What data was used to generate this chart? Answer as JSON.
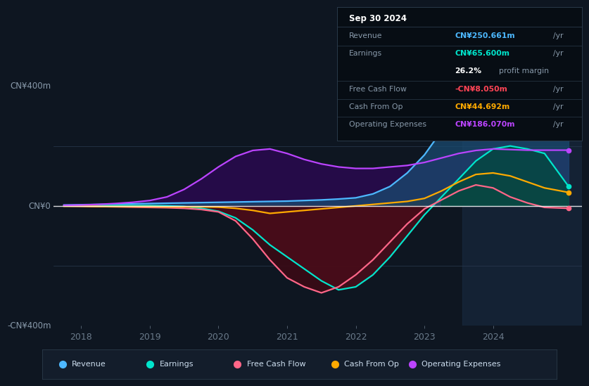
{
  "bg_color": "#0e1621",
  "plot_bg_color": "#0e1621",
  "ylim": [
    -400,
    480
  ],
  "xlim": [
    2017.6,
    2025.3
  ],
  "xticks": [
    2018,
    2019,
    2020,
    2021,
    2022,
    2023,
    2024
  ],
  "ylabel_top": "CN¥400m",
  "ylabel_zero": "CN¥0",
  "ylabel_bottom": "-CN¥400m",
  "info_box": {
    "date": "Sep 30 2024",
    "rows": [
      {
        "label": "Revenue",
        "value": "CN¥250.661m /yr",
        "color": "#4db8ff"
      },
      {
        "label": "Earnings",
        "value": "CN¥65.600m /yr",
        "color": "#00e5cc"
      },
      {
        "label": "",
        "value": "26.2% profit margin",
        "color": null
      },
      {
        "label": "Free Cash Flow",
        "value": "-CN¥8.050m /yr",
        "color": "#ff4455"
      },
      {
        "label": "Cash From Op",
        "value": "CN¥44.692m /yr",
        "color": "#ffaa00"
      },
      {
        "label": "Operating Expenses",
        "value": "CN¥186.070m /yr",
        "color": "#bb44ff"
      }
    ]
  },
  "legend": [
    {
      "label": "Revenue",
      "color": "#4db8ff"
    },
    {
      "label": "Earnings",
      "color": "#00e5cc"
    },
    {
      "label": "Free Cash Flow",
      "color": "#ff6688"
    },
    {
      "label": "Cash From Op",
      "color": "#ffaa00"
    },
    {
      "label": "Operating Expenses",
      "color": "#bb44ff"
    }
  ],
  "series": {
    "x": [
      2017.75,
      2018.0,
      2018.25,
      2018.5,
      2018.75,
      2019.0,
      2019.25,
      2019.5,
      2019.75,
      2020.0,
      2020.25,
      2020.5,
      2020.75,
      2021.0,
      2021.25,
      2021.5,
      2021.75,
      2022.0,
      2022.25,
      2022.5,
      2022.75,
      2023.0,
      2023.25,
      2023.5,
      2023.75,
      2024.0,
      2024.25,
      2024.5,
      2024.75,
      2025.1
    ],
    "revenue": [
      3,
      4,
      5,
      6,
      7,
      8,
      9,
      10,
      11,
      12,
      13,
      14,
      15,
      16,
      18,
      20,
      23,
      27,
      40,
      65,
      110,
      170,
      250,
      340,
      380,
      360,
      310,
      280,
      260,
      250
    ],
    "earnings": [
      1,
      1,
      1,
      1,
      1,
      1,
      0,
      -2,
      -8,
      -18,
      -40,
      -80,
      -130,
      -170,
      -210,
      -250,
      -280,
      -270,
      -230,
      -170,
      -100,
      -30,
      30,
      90,
      150,
      190,
      200,
      190,
      175,
      65
    ],
    "fcf": [
      0,
      -1,
      -2,
      -3,
      -4,
      -5,
      -6,
      -8,
      -12,
      -20,
      -50,
      -110,
      -180,
      -240,
      -270,
      -290,
      -270,
      -230,
      -180,
      -120,
      -60,
      -10,
      20,
      50,
      70,
      60,
      30,
      10,
      -5,
      -8
    ],
    "cashop": [
      -1,
      -1,
      -2,
      -2,
      -2,
      -2,
      -3,
      -3,
      -3,
      -4,
      -8,
      -15,
      -25,
      -20,
      -15,
      -10,
      -5,
      0,
      5,
      10,
      15,
      25,
      50,
      80,
      105,
      110,
      100,
      80,
      60,
      45
    ],
    "opex": [
      2,
      3,
      5,
      8,
      12,
      18,
      30,
      55,
      90,
      130,
      165,
      185,
      190,
      175,
      155,
      140,
      130,
      125,
      125,
      130,
      135,
      145,
      160,
      175,
      185,
      190,
      188,
      186,
      186,
      186
    ]
  },
  "highlight_xmin": 2023.55,
  "highlight_xmax": 2025.3,
  "revenue_line_color": "#4db8ff",
  "revenue_fill_color": "#1a4a70",
  "earnings_line_color": "#00e5cc",
  "earnings_neg_fill": "#4a0d1a",
  "earnings_pos_fill": "#004a3a",
  "fcf_line_color": "#ff6688",
  "fcf_neg_fill": "#3a0a15",
  "cashop_line_color": "#ffaa00",
  "cashop_fill_color": "#3a2800",
  "opex_line_color": "#bb44ff",
  "opex_fill_color": "#2a0a50"
}
